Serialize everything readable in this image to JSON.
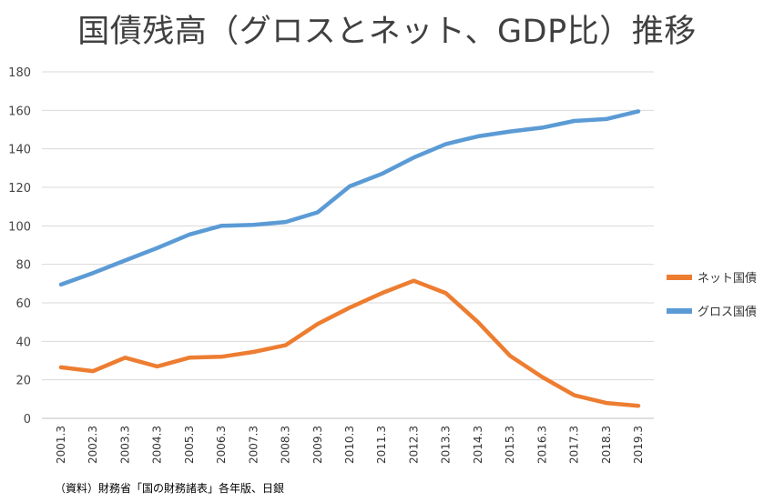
{
  "chart_data": {
    "type": "line",
    "title": "国債残高（グロスとネット、GDP比）推移",
    "categories": [
      "2001.3",
      "2002.3",
      "2003.3",
      "2004.3",
      "2005.3",
      "2006.3",
      "2007.3",
      "2008.3",
      "2009.3",
      "2010.3",
      "2011.3",
      "2012.3",
      "2013.3",
      "2014.3",
      "2015.3",
      "2016.3",
      "2017.3",
      "2018.3",
      "2019.3"
    ],
    "yticks": [
      0,
      20,
      40,
      60,
      80,
      100,
      120,
      140,
      160,
      180
    ],
    "ylim": [
      0,
      180
    ],
    "grid": true,
    "legend_position": "right",
    "series": [
      {
        "name": "ネット国債",
        "color": "#ED7D31",
        "values": [
          26.5,
          24.5,
          31.5,
          27,
          31.5,
          32,
          34.5,
          38,
          49,
          57.5,
          65,
          71.5,
          65,
          50,
          32.5,
          21.5,
          12,
          8,
          6.5
        ]
      },
      {
        "name": "グロス国債",
        "color": "#5B9BD5",
        "values": [
          69.5,
          75.5,
          82,
          88.5,
          95.5,
          100,
          100.5,
          102,
          107,
          120.5,
          127,
          135.5,
          142.5,
          146.5,
          149,
          151,
          154.5,
          155.5,
          159.5
        ]
      }
    ]
  },
  "source_note": "（資料）財務省「国の財務諸表」各年版、日銀"
}
